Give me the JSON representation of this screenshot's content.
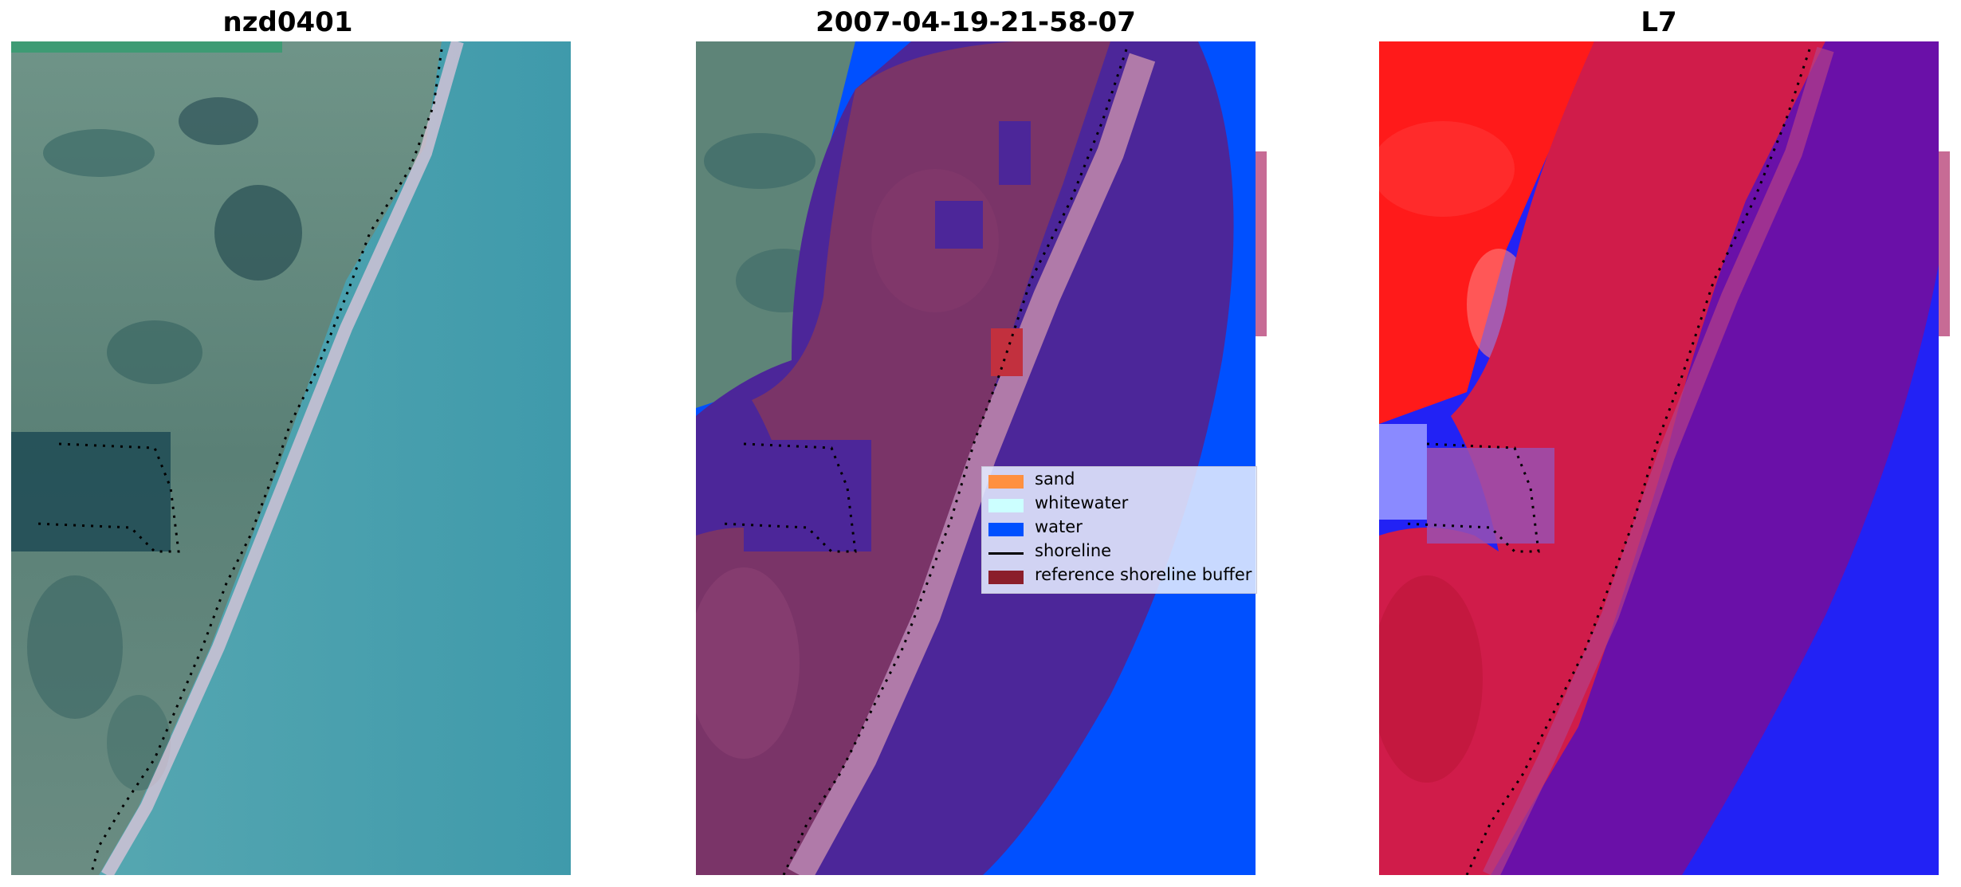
{
  "panels": [
    {
      "id": "rgb",
      "title": "nzd0401"
    },
    {
      "id": "classified",
      "title": "2007-04-19-21-58-07"
    },
    {
      "id": "index",
      "title": "L7"
    }
  ],
  "legend": {
    "items": [
      {
        "label": "sand",
        "type": "patch",
        "color": "#ff9040"
      },
      {
        "label": "whitewater",
        "type": "patch",
        "color": "#ccffff"
      },
      {
        "label": "water",
        "type": "patch",
        "color": "#0050ff"
      },
      {
        "label": "shoreline",
        "type": "line",
        "color": "#000000"
      },
      {
        "label": "reference shoreline buffer",
        "type": "patch",
        "color": "#8b1e2b"
      }
    ]
  },
  "colors": {
    "land_rgb": "#5e8f84",
    "sea_rgb": "#4aa3b0",
    "classified_land": "#7a3468",
    "classified_water_overlay": "#4c2699",
    "classified_sand_band": "#b07aa9",
    "water_blue": "#0050ff",
    "index_red": "#e0102e",
    "index_purple": "#6a10a8",
    "index_blue": "#1a1aff"
  }
}
